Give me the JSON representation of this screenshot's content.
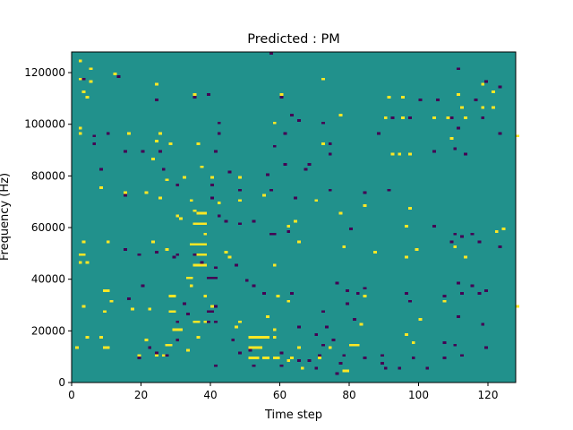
{
  "chart_data": {
    "type": "heatmap",
    "title": "Predicted : PM",
    "xlabel": "Time step",
    "ylabel": "Frequency (Hz)",
    "xlim": [
      0,
      128
    ],
    "ylim": [
      0,
      128000
    ],
    "xticks": [
      0,
      20,
      40,
      60,
      80,
      100,
      120
    ],
    "yticks": [
      0,
      20000,
      40000,
      60000,
      80000,
      100000,
      120000
    ],
    "xtick_labels": [
      "0",
      "20",
      "40",
      "60",
      "80",
      "100",
      "120"
    ],
    "ytick_labels": [
      "0",
      "20000",
      "40000",
      "60000",
      "80000",
      "100000",
      "120000"
    ],
    "n_time_steps": 128,
    "n_freq_bins": 128,
    "bin_hz": 1000,
    "colors": {
      "background": "#21918c",
      "low": "#440154",
      "high": "#fde725"
    },
    "cells": {
      "high": [
        [
          2,
          124
        ],
        [
          5,
          121
        ],
        [
          12,
          119
        ],
        [
          2,
          117
        ],
        [
          5,
          116
        ],
        [
          24,
          115
        ],
        [
          3,
          112
        ],
        [
          35,
          111
        ],
        [
          60,
          111
        ],
        [
          4,
          110
        ],
        [
          72,
          117
        ],
        [
          118,
          115
        ],
        [
          121,
          112
        ],
        [
          111,
          111
        ],
        [
          91,
          110
        ],
        [
          95,
          110
        ],
        [
          112,
          106
        ],
        [
          118,
          106
        ],
        [
          121,
          106
        ],
        [
          77,
          103
        ],
        [
          90,
          102
        ],
        [
          95,
          102
        ],
        [
          104,
          102
        ],
        [
          108,
          102
        ],
        [
          113,
          102
        ],
        [
          58,
          100
        ],
        [
          2,
          98
        ],
        [
          2,
          96
        ],
        [
          16,
          96
        ],
        [
          25,
          96
        ],
        [
          24,
          93
        ],
        [
          28,
          92
        ],
        [
          36,
          92
        ],
        [
          72,
          92
        ],
        [
          94,
          88
        ],
        [
          97,
          88
        ],
        [
          109,
          94
        ],
        [
          92,
          88
        ],
        [
          128,
          95
        ],
        [
          23,
          86
        ],
        [
          37,
          83
        ],
        [
          32,
          79
        ],
        [
          27,
          78
        ],
        [
          40,
          79
        ],
        [
          48,
          79
        ],
        [
          8,
          75
        ],
        [
          15,
          73
        ],
        [
          21,
          73
        ],
        [
          55,
          72
        ],
        [
          25,
          71
        ],
        [
          34,
          70
        ],
        [
          42,
          69
        ],
        [
          48,
          70
        ],
        [
          70,
          70
        ],
        [
          84,
          68
        ],
        [
          97,
          67
        ],
        [
          77,
          65
        ],
        [
          35,
          66
        ],
        [
          36,
          65
        ],
        [
          37,
          65
        ],
        [
          38,
          65
        ],
        [
          30,
          64
        ],
        [
          31,
          63
        ],
        [
          64,
          62
        ],
        [
          62,
          60
        ],
        [
          35,
          61
        ],
        [
          36,
          61
        ],
        [
          37,
          61
        ],
        [
          38,
          61
        ],
        [
          38,
          57
        ],
        [
          96,
          60
        ],
        [
          122,
          58
        ],
        [
          124,
          59
        ],
        [
          3,
          54
        ],
        [
          2,
          49
        ],
        [
          10,
          54
        ],
        [
          23,
          54
        ],
        [
          27,
          51
        ],
        [
          34,
          53
        ],
        [
          35,
          53
        ],
        [
          36,
          53
        ],
        [
          37,
          53
        ],
        [
          38,
          53
        ],
        [
          35,
          49
        ],
        [
          36,
          49
        ],
        [
          37,
          49
        ],
        [
          38,
          49
        ],
        [
          44,
          50
        ],
        [
          45,
          48
        ],
        [
          58,
          45
        ],
        [
          65,
          54
        ],
        [
          78,
          52
        ],
        [
          99,
          51
        ],
        [
          96,
          48
        ],
        [
          87,
          50
        ],
        [
          110,
          52
        ],
        [
          113,
          48
        ],
        [
          2,
          49
        ],
        [
          3,
          49
        ],
        [
          4,
          46
        ],
        [
          2,
          46
        ],
        [
          35,
          45
        ],
        [
          36,
          45
        ],
        [
          37,
          45
        ],
        [
          38,
          45
        ],
        [
          33,
          40
        ],
        [
          34,
          40
        ],
        [
          34,
          37
        ],
        [
          28,
          33
        ],
        [
          29,
          33
        ],
        [
          38,
          33
        ],
        [
          59,
          33
        ],
        [
          62,
          31
        ],
        [
          84,
          33
        ],
        [
          107,
          31
        ],
        [
          128,
          29
        ],
        [
          9,
          35
        ],
        [
          10,
          35
        ],
        [
          11,
          31
        ],
        [
          3,
          29
        ],
        [
          17,
          28
        ],
        [
          9,
          27
        ],
        [
          22,
          28
        ],
        [
          28,
          27
        ],
        [
          29,
          27
        ],
        [
          35,
          23
        ],
        [
          36,
          23
        ],
        [
          38,
          23
        ],
        [
          47,
          21
        ],
        [
          48,
          23
        ],
        [
          51,
          17
        ],
        [
          52,
          17
        ],
        [
          53,
          17
        ],
        [
          54,
          17
        ],
        [
          55,
          17
        ],
        [
          56,
          17
        ],
        [
          58,
          17
        ],
        [
          51,
          13
        ],
        [
          52,
          13
        ],
        [
          53,
          13
        ],
        [
          54,
          13
        ],
        [
          51,
          9
        ],
        [
          52,
          9
        ],
        [
          53,
          9
        ],
        [
          55,
          9
        ],
        [
          56,
          9
        ],
        [
          58,
          9
        ],
        [
          59,
          9
        ],
        [
          80,
          14
        ],
        [
          81,
          14
        ],
        [
          82,
          14
        ],
        [
          74,
          13
        ],
        [
          63,
          9
        ],
        [
          65,
          13
        ],
        [
          71,
          9
        ],
        [
          62,
          8
        ],
        [
          66,
          5
        ],
        [
          78,
          4
        ],
        [
          79,
          4
        ],
        [
          1,
          13
        ],
        [
          4,
          17
        ],
        [
          8,
          17
        ],
        [
          9,
          13
        ],
        [
          10,
          13
        ],
        [
          19,
          10
        ],
        [
          24,
          10
        ],
        [
          26,
          10
        ],
        [
          27,
          14
        ],
        [
          28,
          14
        ],
        [
          29,
          20
        ],
        [
          30,
          20
        ],
        [
          31,
          20
        ],
        [
          33,
          12
        ],
        [
          36,
          17
        ],
        [
          21,
          16
        ],
        [
          40,
          29
        ],
        [
          56,
          25
        ],
        [
          58,
          20
        ],
        [
          83,
          22
        ],
        [
          100,
          24
        ],
        [
          96,
          18
        ],
        [
          98,
          15
        ]
      ],
      "low": [
        [
          57,
          127
        ],
        [
          13,
          118
        ],
        [
          3,
          117
        ],
        [
          111,
          121
        ],
        [
          123,
          114
        ],
        [
          119,
          116
        ],
        [
          24,
          109
        ],
        [
          35,
          110
        ],
        [
          39,
          111
        ],
        [
          60,
          110
        ],
        [
          100,
          109
        ],
        [
          105,
          109
        ],
        [
          116,
          109
        ],
        [
          92,
          102
        ],
        [
          109,
          102
        ],
        [
          111,
          98
        ],
        [
          118,
          102
        ],
        [
          63,
          103
        ],
        [
          65,
          101
        ],
        [
          42,
          100
        ],
        [
          72,
          100
        ],
        [
          97,
          102
        ],
        [
          6,
          95
        ],
        [
          10,
          96
        ],
        [
          42,
          96
        ],
        [
          61,
          96
        ],
        [
          88,
          96
        ],
        [
          123,
          96
        ],
        [
          6,
          92
        ],
        [
          15,
          89
        ],
        [
          20,
          89
        ],
        [
          25,
          89
        ],
        [
          41,
          89
        ],
        [
          61,
          84
        ],
        [
          68,
          84
        ],
        [
          58,
          91
        ],
        [
          74,
          92
        ],
        [
          104,
          89
        ],
        [
          110,
          90
        ],
        [
          113,
          88
        ],
        [
          8,
          82
        ],
        [
          45,
          81
        ],
        [
          56,
          80
        ],
        [
          67,
          82
        ],
        [
          74,
          88
        ],
        [
          26,
          82
        ],
        [
          30,
          76
        ],
        [
          40,
          76
        ],
        [
          48,
          74
        ],
        [
          57,
          74
        ],
        [
          64,
          71
        ],
        [
          74,
          74
        ],
        [
          84,
          73
        ],
        [
          91,
          74
        ],
        [
          40,
          71
        ],
        [
          15,
          72
        ],
        [
          42,
          64
        ],
        [
          44,
          62
        ],
        [
          48,
          61
        ],
        [
          52,
          62
        ],
        [
          62,
          58
        ],
        [
          57,
          57
        ],
        [
          58,
          57
        ],
        [
          80,
          59
        ],
        [
          104,
          60
        ],
        [
          109,
          54
        ],
        [
          110,
          57
        ],
        [
          112,
          56
        ],
        [
          115,
          57
        ],
        [
          117,
          54
        ],
        [
          123,
          52
        ],
        [
          15,
          51
        ],
        [
          19,
          49
        ],
        [
          24,
          50
        ],
        [
          29,
          48
        ],
        [
          30,
          49
        ],
        [
          35,
          49
        ],
        [
          37,
          46
        ],
        [
          41,
          44
        ],
        [
          39,
          40
        ],
        [
          40,
          40
        ],
        [
          41,
          40
        ],
        [
          47,
          45
        ],
        [
          50,
          39
        ],
        [
          52,
          37
        ],
        [
          55,
          34
        ],
        [
          63,
          34
        ],
        [
          76,
          38
        ],
        [
          79,
          35
        ],
        [
          82,
          34
        ],
        [
          84,
          36
        ],
        [
          96,
          34
        ],
        [
          97,
          31
        ],
        [
          107,
          33
        ],
        [
          111,
          38
        ],
        [
          112,
          34
        ],
        [
          115,
          37
        ],
        [
          117,
          34
        ],
        [
          119,
          35
        ],
        [
          111,
          25
        ],
        [
          118,
          22
        ],
        [
          16,
          32
        ],
        [
          20,
          37
        ],
        [
          32,
          30
        ],
        [
          33,
          26
        ],
        [
          39,
          27
        ],
        [
          40,
          27
        ],
        [
          41,
          29
        ],
        [
          39,
          23
        ],
        [
          41,
          23
        ],
        [
          46,
          16
        ],
        [
          51,
          12
        ],
        [
          70,
          18
        ],
        [
          72,
          27
        ],
        [
          73,
          21
        ],
        [
          65,
          21
        ],
        [
          75,
          16
        ],
        [
          79,
          30
        ],
        [
          81,
          24
        ],
        [
          71,
          10
        ],
        [
          72,
          14
        ],
        [
          68,
          8
        ],
        [
          60,
          11
        ],
        [
          70,
          5
        ],
        [
          76,
          3
        ],
        [
          77,
          7
        ],
        [
          78,
          10
        ],
        [
          84,
          9
        ],
        [
          89,
          7
        ],
        [
          90,
          5
        ],
        [
          94,
          5
        ],
        [
          89,
          10
        ],
        [
          98,
          9
        ],
        [
          102,
          5
        ],
        [
          107,
          15
        ],
        [
          110,
          14
        ],
        [
          112,
          10
        ],
        [
          119,
          13
        ],
        [
          107,
          9
        ],
        [
          22,
          13
        ],
        [
          19,
          9
        ],
        [
          24,
          11
        ],
        [
          27,
          10
        ],
        [
          30,
          16
        ],
        [
          30,
          23
        ],
        [
          41,
          6
        ],
        [
          48,
          11
        ],
        [
          52,
          6
        ],
        [
          60,
          6
        ],
        [
          65,
          8
        ]
      ]
    }
  }
}
